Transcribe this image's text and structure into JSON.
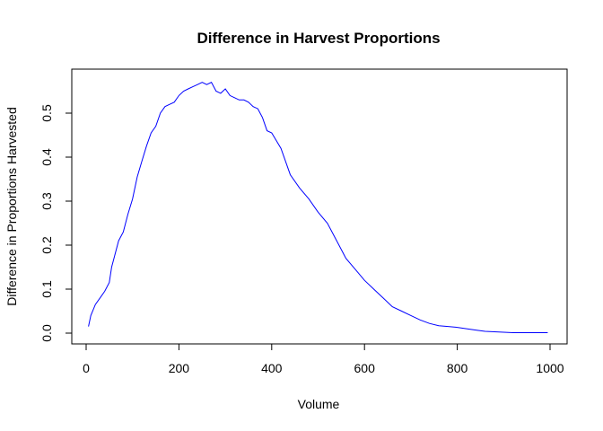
{
  "chart_data": {
    "type": "line",
    "title": "Difference in Harvest Proportions",
    "xlabel": "Volume",
    "ylabel": "Difference in Proportions Harvested",
    "xlim": [
      0,
      1000
    ],
    "ylim": [
      0,
      0.6
    ],
    "xticks": [
      0,
      200,
      400,
      600,
      800,
      1000
    ],
    "yticks": [
      0.0,
      0.1,
      0.2,
      0.3,
      0.4,
      0.5
    ],
    "ytick_labels": [
      "0.0",
      "0.1",
      "0.2",
      "0.3",
      "0.4",
      "0.5"
    ],
    "grid": false,
    "series": [
      {
        "color": "#0000ff",
        "x": [
          5,
          10,
          20,
          30,
          40,
          50,
          55,
          60,
          70,
          80,
          90,
          100,
          110,
          120,
          130,
          140,
          150,
          160,
          170,
          180,
          190,
          200,
          210,
          220,
          230,
          240,
          250,
          260,
          270,
          280,
          290,
          300,
          310,
          320,
          330,
          340,
          350,
          360,
          370,
          380,
          390,
          400,
          420,
          440,
          460,
          480,
          500,
          520,
          540,
          560,
          580,
          600,
          620,
          640,
          660,
          680,
          700,
          720,
          740,
          760,
          780,
          800,
          820,
          840,
          860,
          880,
          900,
          920,
          940,
          960,
          980,
          995
        ],
        "y": [
          0.015,
          0.04,
          0.065,
          0.08,
          0.095,
          0.115,
          0.15,
          0.17,
          0.21,
          0.23,
          0.27,
          0.305,
          0.355,
          0.39,
          0.425,
          0.455,
          0.47,
          0.5,
          0.515,
          0.52,
          0.525,
          0.54,
          0.55,
          0.555,
          0.56,
          0.565,
          0.57,
          0.565,
          0.57,
          0.55,
          0.545,
          0.555,
          0.54,
          0.535,
          0.53,
          0.53,
          0.525,
          0.515,
          0.51,
          0.49,
          0.46,
          0.455,
          0.42,
          0.36,
          0.33,
          0.305,
          0.275,
          0.25,
          0.21,
          0.17,
          0.145,
          0.12,
          0.1,
          0.08,
          0.06,
          0.05,
          0.04,
          0.03,
          0.022,
          0.017,
          0.015,
          0.013,
          0.01,
          0.007,
          0.004,
          0.003,
          0.002,
          0.001,
          0.001,
          0.001,
          0.001,
          0.001
        ]
      }
    ]
  }
}
